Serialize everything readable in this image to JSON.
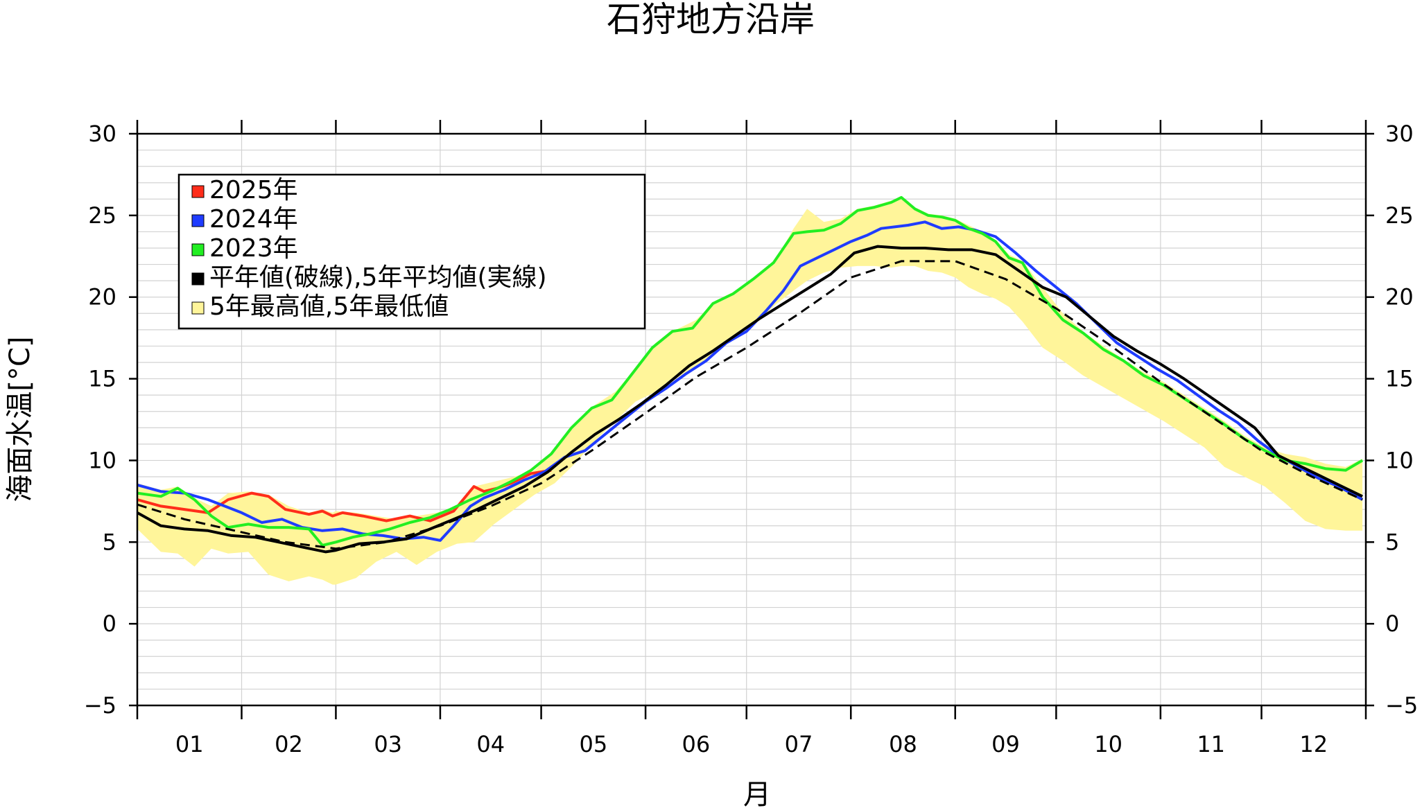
{
  "chart_data": {
    "type": "line",
    "title": "石狩地方沿岸",
    "xlabel": "月",
    "ylabel": "海面水温[°C]",
    "ylim": [
      -5,
      30
    ],
    "yticks": [
      "−5",
      "0",
      "5",
      "10",
      "15",
      "20",
      "25",
      "30"
    ],
    "months": [
      "01",
      "02",
      "03",
      "04",
      "05",
      "06",
      "07",
      "08",
      "09",
      "10",
      "11",
      "12"
    ],
    "month_starts": [
      1,
      32,
      60,
      91,
      121,
      152,
      182,
      213,
      244,
      274,
      305,
      335,
      366
    ],
    "grid": true,
    "legend_position": "top-left",
    "legend": [
      {
        "label": "2025年",
        "color": "#ff2d1a"
      },
      {
        "label": "2024年",
        "color": "#1f3cff"
      },
      {
        "label": "2023年",
        "color": "#22ee22"
      },
      {
        "label": "平年値(破線),5年平均値(実線)",
        "color": "#000000"
      },
      {
        "label": "5年最高値,5年最低値",
        "color": "#fff59a"
      }
    ],
    "series": [
      {
        "name": "2025年",
        "color": "#ff2d1a",
        "x": [
          1,
          8,
          15,
          22,
          28,
          35,
          40,
          45,
          52,
          56,
          59,
          62,
          68,
          75,
          82,
          88,
          95,
          101,
          104,
          108,
          112,
          118,
          124
        ],
        "y": [
          7.6,
          7.2,
          7.0,
          6.8,
          7.6,
          8.0,
          7.8,
          7.0,
          6.7,
          6.9,
          6.6,
          6.8,
          6.6,
          6.3,
          6.6,
          6.3,
          6.9,
          8.4,
          8.1,
          8.3,
          8.6,
          9.2,
          9.4
        ]
      },
      {
        "name": "2024年",
        "color": "#1f3cff",
        "x": [
          1,
          8,
          15,
          22,
          27,
          32,
          38,
          44,
          50,
          56,
          62,
          68,
          74,
          80,
          86,
          91,
          95,
          100,
          104,
          110,
          116,
          122,
          128,
          134,
          140,
          146,
          152,
          158,
          164,
          170,
          176,
          182,
          188,
          193,
          198,
          203,
          208,
          213,
          218,
          222,
          226,
          230,
          235,
          240,
          245,
          250,
          256,
          262,
          268,
          274,
          280,
          286,
          292,
          298,
          304,
          310,
          316,
          322,
          328,
          334,
          340,
          346,
          352,
          358,
          365
        ],
        "y": [
          8.5,
          8.1,
          8.0,
          7.6,
          7.2,
          6.8,
          6.2,
          6.4,
          5.9,
          5.7,
          5.8,
          5.5,
          5.4,
          5.2,
          5.3,
          5.1,
          6.0,
          7.2,
          7.7,
          8.2,
          8.8,
          9.3,
          10.2,
          10.6,
          11.6,
          12.6,
          13.6,
          14.4,
          15.3,
          16.1,
          17.2,
          17.9,
          19.2,
          20.4,
          21.9,
          22.4,
          22.9,
          23.4,
          23.8,
          24.2,
          24.3,
          24.4,
          24.6,
          24.2,
          24.3,
          24.1,
          23.7,
          22.7,
          21.6,
          20.6,
          19.6,
          18.4,
          17.2,
          16.4,
          15.6,
          14.9,
          14.0,
          13.1,
          12.3,
          11.2,
          10.3,
          9.6,
          8.9,
          8.4,
          7.6
        ]
      },
      {
        "name": "2023年",
        "color": "#22ee22",
        "x": [
          1,
          8,
          13,
          18,
          23,
          28,
          34,
          40,
          46,
          52,
          56,
          60,
          65,
          70,
          76,
          82,
          88,
          94,
          100,
          106,
          112,
          118,
          124,
          130,
          136,
          142,
          148,
          154,
          160,
          166,
          172,
          178,
          184,
          190,
          196,
          200,
          205,
          210,
          215,
          220,
          225,
          228,
          232,
          236,
          240,
          244,
          248,
          252,
          256,
          260,
          264,
          270,
          276,
          282,
          288,
          294,
          300,
          306,
          312,
          318,
          324,
          330,
          336,
          342,
          348,
          354,
          360,
          365
        ],
        "y": [
          8.0,
          7.8,
          8.3,
          7.6,
          6.6,
          5.9,
          6.1,
          5.9,
          5.9,
          5.8,
          4.8,
          5.0,
          5.3,
          5.5,
          5.8,
          6.2,
          6.5,
          7.0,
          7.6,
          8.1,
          8.7,
          9.4,
          10.4,
          12.0,
          13.2,
          13.7,
          15.3,
          16.9,
          17.9,
          18.1,
          19.6,
          20.2,
          21.1,
          22.1,
          23.9,
          24.0,
          24.1,
          24.5,
          25.3,
          25.5,
          25.8,
          26.1,
          25.4,
          25.0,
          24.9,
          24.7,
          24.2,
          23.9,
          23.4,
          22.4,
          22.1,
          20.0,
          18.6,
          17.8,
          16.8,
          16.1,
          15.2,
          14.6,
          13.8,
          13.0,
          12.2,
          11.3,
          10.6,
          10.0,
          9.8,
          9.5,
          9.4,
          10.0
        ]
      },
      {
        "name": "5年平均値",
        "color": "#000000",
        "style": "solid",
        "x": [
          1,
          8,
          15,
          22,
          29,
          36,
          43,
          50,
          57,
          60,
          67,
          74,
          81,
          88,
          95,
          102,
          109,
          116,
          123,
          130,
          137,
          144,
          151,
          158,
          165,
          172,
          179,
          186,
          193,
          200,
          207,
          214,
          221,
          228,
          235,
          242,
          249,
          256,
          263,
          270,
          277,
          284,
          291,
          298,
          305,
          312,
          319,
          326,
          333,
          340,
          347,
          354,
          361,
          365
        ],
        "y": [
          6.8,
          6.0,
          5.8,
          5.7,
          5.4,
          5.3,
          5.0,
          4.7,
          4.4,
          4.5,
          4.9,
          5.0,
          5.2,
          5.8,
          6.4,
          7.0,
          7.7,
          8.4,
          9.3,
          10.5,
          11.6,
          12.5,
          13.5,
          14.6,
          15.8,
          16.7,
          17.7,
          18.7,
          19.6,
          20.5,
          21.4,
          22.7,
          23.1,
          23.0,
          23.0,
          22.9,
          22.9,
          22.6,
          21.6,
          20.6,
          20.0,
          18.8,
          17.6,
          16.7,
          15.9,
          15.0,
          14.0,
          13.0,
          12.0,
          10.3,
          9.6,
          8.9,
          8.2,
          7.8
        ]
      },
      {
        "name": "平年値",
        "color": "#000000",
        "style": "dashed",
        "x": [
          1,
          15,
          30,
          45,
          60,
          75,
          91,
          106,
          121,
          136,
          152,
          167,
          182,
          197,
          213,
          228,
          244,
          259,
          274,
          289,
          305,
          320,
          335,
          350,
          365
        ],
        "y": [
          7.3,
          6.4,
          5.7,
          5.0,
          4.6,
          5.0,
          6.0,
          7.2,
          8.6,
          10.6,
          12.9,
          15.1,
          16.9,
          18.9,
          21.2,
          22.2,
          22.2,
          21.1,
          19.3,
          17.2,
          14.8,
          12.7,
          10.6,
          9.0,
          7.6
        ]
      }
    ],
    "band": {
      "name": "5年最高値,5年最低値",
      "color": "#fff59a",
      "x": [
        1,
        8,
        13,
        18,
        23,
        28,
        34,
        40,
        46,
        52,
        56,
        59,
        60,
        66,
        72,
        78,
        84,
        90,
        96,
        101,
        107,
        113,
        119,
        125,
        131,
        137,
        143,
        149,
        155,
        161,
        167,
        173,
        179,
        185,
        191,
        196,
        200,
        205,
        210,
        215,
        220,
        225,
        228,
        232,
        236,
        240,
        244,
        248,
        252,
        256,
        260,
        264,
        270,
        276,
        282,
        288,
        294,
        300,
        306,
        312,
        318,
        324,
        330,
        336,
        342,
        348,
        354,
        360,
        365
      ],
      "upper": [
        8.6,
        8.2,
        8.4,
        7.7,
        7.2,
        8.0,
        8.1,
        7.9,
        7.2,
        6.8,
        7.0,
        6.8,
        6.9,
        6.8,
        6.6,
        6.4,
        6.6,
        6.8,
        7.2,
        8.4,
        8.7,
        9.0,
        9.4,
        10.6,
        12.2,
        13.4,
        14.2,
        15.6,
        17.2,
        18.0,
        18.6,
        19.8,
        20.4,
        21.3,
        22.4,
        24.2,
        25.4,
        24.6,
        24.8,
        25.4,
        25.6,
        25.9,
        26.1,
        25.5,
        25.1,
        25.0,
        24.8,
        24.4,
        24.0,
        23.5,
        22.6,
        22.2,
        20.6,
        19.0,
        17.9,
        17.0,
        16.2,
        15.4,
        14.8,
        14.0,
        13.2,
        12.4,
        11.5,
        10.8,
        10.4,
        10.2,
        9.8,
        9.6,
        10.1
      ],
      "lower": [
        5.8,
        4.4,
        4.3,
        3.5,
        4.6,
        4.3,
        4.4,
        3.0,
        2.6,
        2.9,
        2.7,
        2.4,
        2.4,
        2.8,
        3.8,
        4.4,
        3.6,
        4.4,
        4.9,
        5.0,
        6.1,
        7.0,
        7.9,
        8.6,
        9.8,
        11.2,
        12.4,
        13.6,
        14.2,
        15.0,
        15.8,
        16.6,
        17.6,
        18.5,
        19.6,
        20.4,
        21.0,
        21.5,
        21.8,
        21.9,
        21.9,
        21.8,
        21.9,
        21.9,
        21.6,
        21.5,
        21.2,
        20.6,
        20.2,
        19.9,
        19.4,
        18.5,
        16.9,
        16.1,
        15.2,
        14.5,
        13.8,
        13.1,
        12.4,
        11.6,
        10.8,
        9.6,
        9.0,
        8.4,
        7.4,
        6.3,
        5.8,
        5.7,
        5.7
      ]
    }
  }
}
